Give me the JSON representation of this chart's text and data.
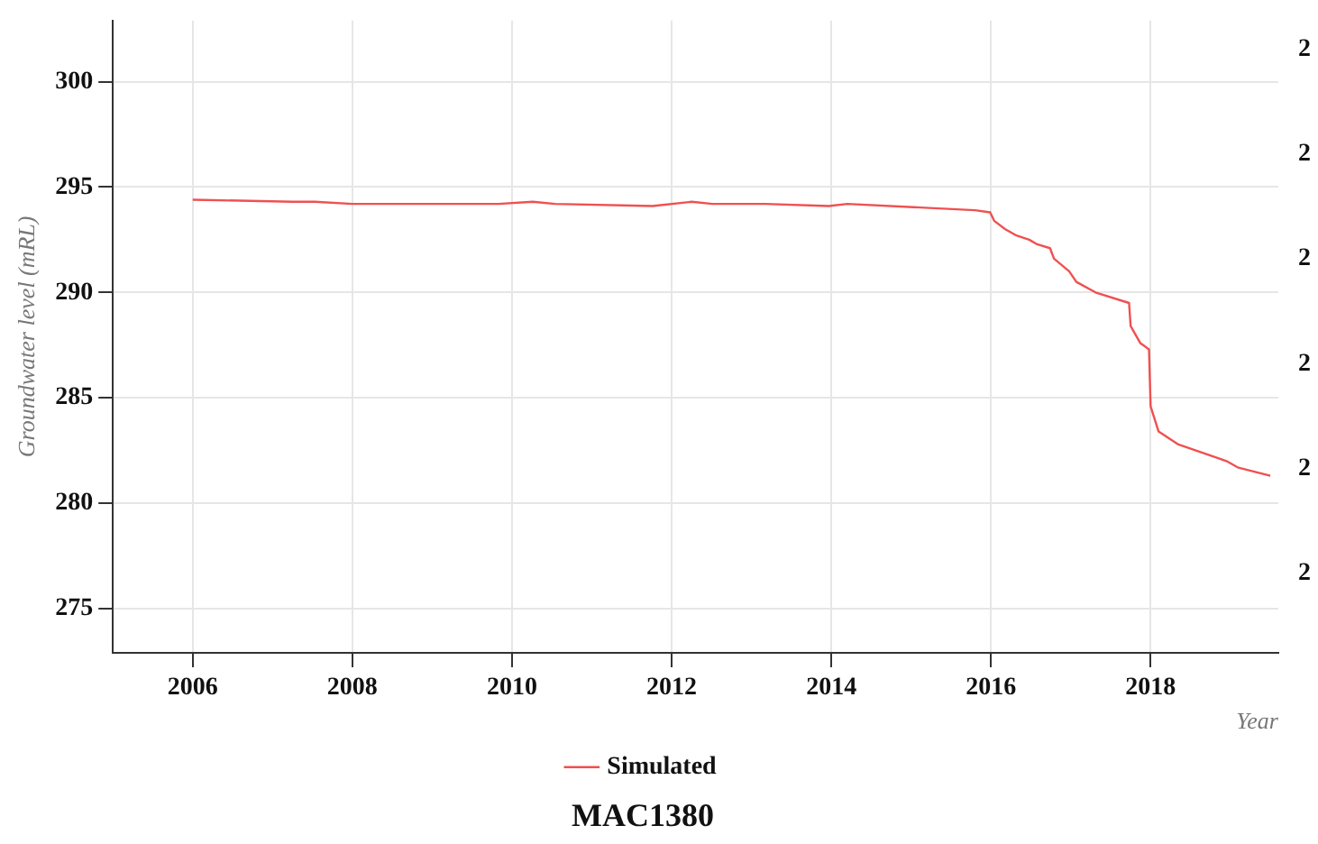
{
  "chart_data": {
    "type": "line",
    "title": "MAC1380",
    "xlabel": "Year",
    "ylabel": "Groundwater level (mRL)",
    "x": [
      2006,
      2007.25,
      2007.53,
      2008,
      2009.83,
      2010.26,
      2010.54,
      2011.76,
      2012.25,
      2012.51,
      2012.98,
      2013.17,
      2013.97,
      2014.2,
      2015.8,
      2015.99,
      2016.04,
      2016.18,
      2016.32,
      2016.48,
      2016.57,
      2016.74,
      2016.79,
      2016.98,
      2017.07,
      2017.31,
      2017.73,
      2017.75,
      2017.87,
      2017.98,
      2018.0,
      2018.1,
      2018.34,
      2018.95,
      2019.09,
      2019.5
    ],
    "series": [
      {
        "name": "Simulated",
        "color": "#f05050",
        "values": [
          294.4,
          294.3,
          294.3,
          294.2,
          294.2,
          294.3,
          294.2,
          294.1,
          294.3,
          294.2,
          294.2,
          294.2,
          294.1,
          294.2,
          293.9,
          293.8,
          293.4,
          293.0,
          292.7,
          292.5,
          292.3,
          292.1,
          291.6,
          291.0,
          290.5,
          290.0,
          289.5,
          288.4,
          287.6,
          287.3,
          284.6,
          283.4,
          282.8,
          282.0,
          281.7,
          281.3
        ]
      }
    ],
    "xlim": [
      2005,
      2019.6
    ],
    "xticks": [
      2006,
      2008,
      2010,
      2012,
      2014,
      2016,
      2018
    ],
    "ylim": [
      272.9,
      302.9
    ],
    "yticks": [
      275,
      280,
      285,
      290,
      295,
      300
    ],
    "annotations": [
      "2",
      "2",
      "2",
      "2",
      "2",
      "2"
    ],
    "grid": true,
    "legend": "bottom",
    "marker": "none",
    "line_style": "solid"
  }
}
